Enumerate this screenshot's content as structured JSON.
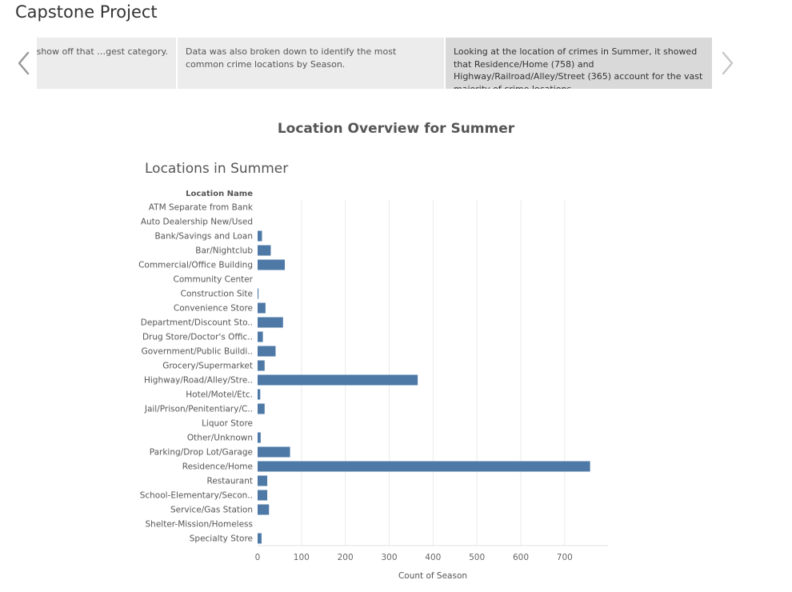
{
  "story": {
    "title": "Capstone Project",
    "points": [
      {
        "text": "…y just Summer to show off that …gest category."
      },
      {
        "text": "Data was also broken down to identify the most common crime locations by Season."
      },
      {
        "text": "Looking at the location of crimes in Summer, it showed that Residence/Home (758) and Highway/Railroad/Alley/Street (365) account for the vast majority of crime locations,"
      }
    ]
  },
  "icons": {
    "prev": "chevron-left-icon",
    "next": "chevron-right-icon"
  },
  "dashboard": {
    "title": "Location Overview for Summer"
  },
  "colors": {
    "bar": "#4e79a7",
    "grid": "#ebebeb",
    "text": "#555555"
  },
  "chart_data": {
    "type": "bar",
    "orientation": "horizontal",
    "title": "Locations in Summer",
    "category_header": "Location Name",
    "xlabel": "Count of Season",
    "xlim": [
      0,
      800
    ],
    "xticks": [
      0,
      100,
      200,
      300,
      400,
      500,
      600,
      700
    ],
    "grid": true,
    "categories": [
      "ATM Separate from Bank",
      "Auto Dealership New/Used",
      "Bank/Savings and Loan",
      "Bar/Nightclub",
      "Commercial/Office Building",
      "Community Center",
      "Construction Site",
      "Convenience Store",
      "Department/Discount Sto..",
      "Drug Store/Doctor's Offic..",
      "Government/Public Buildi..",
      "Grocery/Supermarket",
      "Highway/Road/Alley/Stre..",
      "Hotel/Motel/Etc.",
      "Jail/Prison/Penitentiary/C..",
      "Liquor Store",
      "Other/Unknown",
      "Parking/Drop Lot/Garage",
      "Residence/Home",
      "Restaurant",
      "School-Elementary/Secon..",
      "Service/Gas Station",
      "Shelter-Mission/Homeless",
      "Specialty Store"
    ],
    "values": [
      0,
      0,
      10,
      30,
      62,
      0,
      2,
      18,
      58,
      12,
      41,
      16,
      365,
      6,
      16,
      0,
      7,
      74,
      758,
      22,
      22,
      26,
      0,
      9
    ]
  }
}
